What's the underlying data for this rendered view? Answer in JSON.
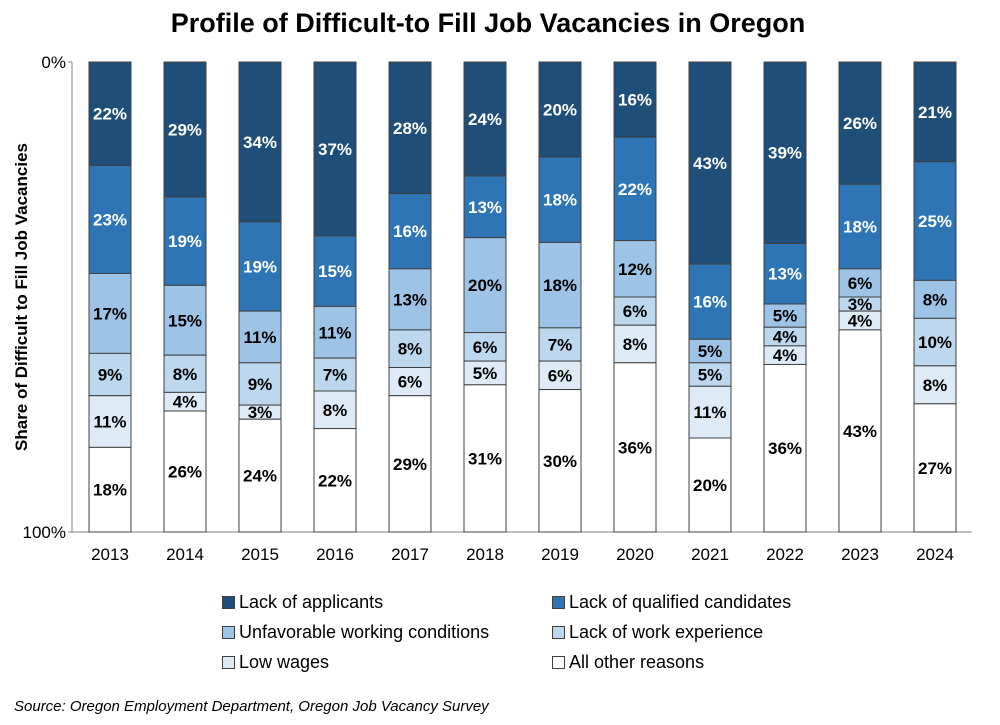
{
  "chart_data": {
    "type": "bar",
    "stacked": true,
    "title": "Profile of Difficult-to Fill Job Vacancies in Oregon",
    "ylabel": "Share of Difficult to Fill Job Vacancies",
    "xlabel": "",
    "ylim": [
      0,
      100
    ],
    "y_inverted": true,
    "y_ticks": [
      "0%",
      "100%"
    ],
    "categories": [
      "2013",
      "2014",
      "2015",
      "2016",
      "2017",
      "2018",
      "2019",
      "2020",
      "2021",
      "2022",
      "2023",
      "2024"
    ],
    "series": [
      {
        "name": "Lack of applicants",
        "color": "#1F4E79",
        "label_color": "#ffffff",
        "values": [
          22,
          29,
          34,
          37,
          28,
          24,
          20,
          16,
          43,
          39,
          26,
          21
        ]
      },
      {
        "name": "Lack of qualified candidates",
        "color": "#2E75B6",
        "label_color": "#ffffff",
        "values": [
          23,
          19,
          19,
          15,
          16,
          13,
          18,
          22,
          16,
          13,
          18,
          25
        ]
      },
      {
        "name": "Unfavorable working conditions",
        "color": "#9DC3E6",
        "label_color": "#000000",
        "values": [
          17,
          15,
          11,
          11,
          13,
          20,
          18,
          12,
          5,
          5,
          6,
          8
        ]
      },
      {
        "name": "Lack of work experience",
        "color": "#BDD7EE",
        "label_color": "#000000",
        "values": [
          9,
          8,
          9,
          7,
          8,
          6,
          7,
          6,
          5,
          4,
          3,
          10
        ]
      },
      {
        "name": "Low wages",
        "color": "#DEEBF7",
        "label_color": "#000000",
        "values": [
          11,
          4,
          3,
          8,
          6,
          5,
          6,
          8,
          11,
          4,
          4,
          8
        ]
      },
      {
        "name": "All other reasons",
        "color": "#FFFFFF",
        "label_color": "#000000",
        "values": [
          18,
          26,
          24,
          22,
          29,
          31,
          30,
          36,
          20,
          36,
          43,
          27
        ]
      }
    ],
    "legend_position": "bottom",
    "source": "Source: Oregon Employment Department, Oregon Job Vacancy Survey"
  }
}
